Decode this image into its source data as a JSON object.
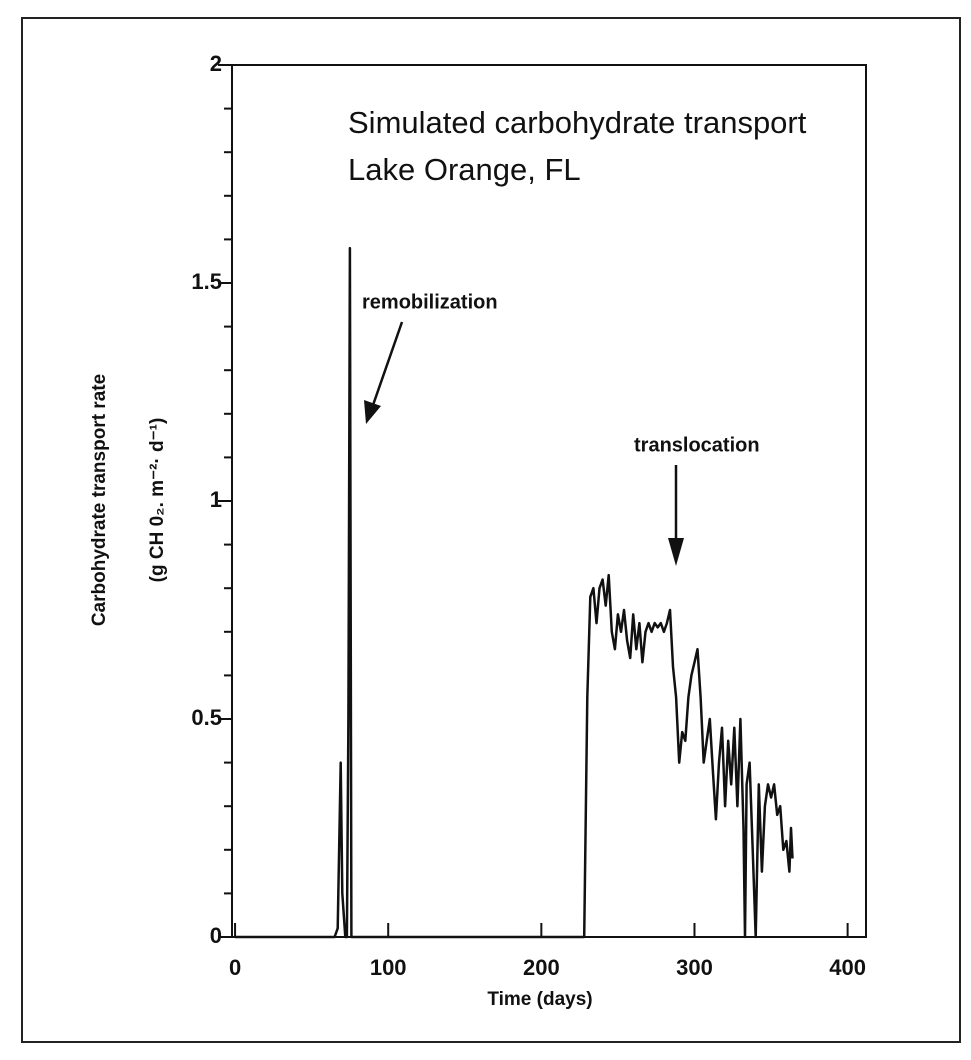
{
  "chart_data": {
    "type": "line",
    "title": "Simulated carbohydrate transport",
    "subtitle": "Lake Orange, FL",
    "xlabel": "Time (days)",
    "ylabel": [
      "Carbohydrate transport rate",
      "(g CH 0₂. m⁻²· d⁻¹)"
    ],
    "annotations": [
      "remobilization",
      "translocation"
    ],
    "xlim": [
      -2,
      412
    ],
    "ylim": [
      0,
      2
    ],
    "xticks": [
      0,
      100,
      200,
      300,
      400
    ],
    "yticks": [
      0,
      0.5,
      1,
      1.5,
      2
    ],
    "yminorticks": [
      0.1,
      0.2,
      0.3,
      0.4,
      0.6,
      0.7,
      0.8,
      0.9,
      1.1,
      1.2,
      1.3,
      1.4,
      1.6,
      1.7,
      1.8,
      1.9
    ],
    "x": [
      0,
      65,
      67,
      69,
      70,
      71,
      72,
      73,
      74,
      75,
      76,
      78,
      228,
      230,
      232,
      234,
      236,
      238,
      240,
      242,
      244,
      246,
      248,
      250,
      252,
      254,
      256,
      258,
      260,
      262,
      264,
      266,
      268,
      270,
      272,
      274,
      276,
      278,
      280,
      282,
      284,
      286,
      288,
      290,
      292,
      294,
      296,
      298,
      300,
      302,
      304,
      306,
      308,
      310,
      312,
      314,
      316,
      318,
      320,
      322,
      324,
      326,
      328,
      330,
      332,
      333,
      334,
      336,
      338,
      340,
      342,
      344,
      346,
      348,
      350,
      352,
      354,
      356,
      358,
      360,
      362,
      363,
      364
    ],
    "series": [
      {
        "color": "#111111",
        "values": [
          0,
          0,
          0.02,
          0.4,
          0.1,
          0.05,
          0,
          0,
          0.5,
          1.58,
          0,
          0,
          0,
          0.55,
          0.78,
          0.8,
          0.72,
          0.8,
          0.82,
          0.76,
          0.83,
          0.7,
          0.66,
          0.74,
          0.7,
          0.75,
          0.68,
          0.64,
          0.74,
          0.66,
          0.72,
          0.63,
          0.7,
          0.72,
          0.7,
          0.72,
          0.71,
          0.72,
          0.7,
          0.72,
          0.75,
          0.62,
          0.55,
          0.4,
          0.47,
          0.45,
          0.55,
          0.6,
          0.63,
          0.66,
          0.55,
          0.4,
          0.45,
          0.5,
          0.38,
          0.27,
          0.4,
          0.48,
          0.3,
          0.45,
          0.35,
          0.48,
          0.3,
          0.5,
          0.25,
          0,
          0.35,
          0.4,
          0.2,
          0,
          0.35,
          0.15,
          0.3,
          0.35,
          0.32,
          0.35,
          0.28,
          0.3,
          0.2,
          0.22,
          0.15,
          0.25,
          0.18
        ]
      }
    ]
  }
}
